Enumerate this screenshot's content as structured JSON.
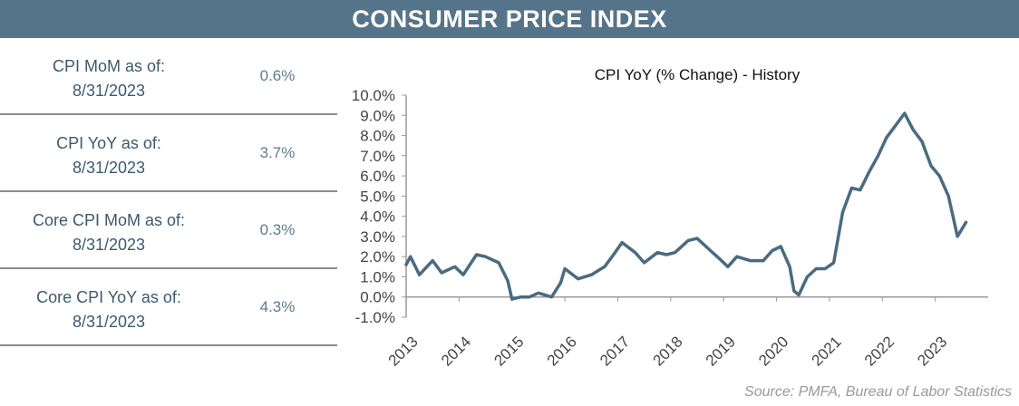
{
  "header": {
    "title": "CONSUMER PRICE INDEX"
  },
  "stats": [
    {
      "label_line1": "CPI MoM as of:",
      "label_line2": "8/31/2023",
      "value": "0.6%"
    },
    {
      "label_line1": "CPI YoY as of:",
      "label_line2": "8/31/2023",
      "value": "3.7%"
    },
    {
      "label_line1": "Core CPI MoM as of:",
      "label_line2": "8/31/2023",
      "value": "0.3%"
    },
    {
      "label_line1": "Core CPI YoY as of:",
      "label_line2": "8/31/2023",
      "value": "4.3%"
    }
  ],
  "source": "Source:  PMFA, Bureau of Labor Statistics",
  "colors": {
    "banner": "#567489",
    "line": "#4a6b80",
    "label_text": "#3c5a6e",
    "value_text": "#5e7b8f"
  },
  "chart_data": {
    "type": "line",
    "title": "CPI YoY (% Change) - History",
    "xlabel": "",
    "ylabel": "",
    "ylim": [
      -1.0,
      10.0
    ],
    "yticks": [
      "-1.0%",
      "0.0%",
      "1.0%",
      "2.0%",
      "3.0%",
      "4.0%",
      "5.0%",
      "6.0%",
      "7.0%",
      "8.0%",
      "9.0%",
      "10.0%"
    ],
    "xticks": [
      "2013",
      "2014",
      "2015",
      "2016",
      "2017",
      "2018",
      "2019",
      "2020",
      "2021",
      "2022",
      "2023"
    ],
    "grid": false,
    "series": [
      {
        "x": [
          2013.0,
          2013.08,
          2013.25,
          2013.5,
          2013.67,
          2013.92,
          2014.08,
          2014.33,
          2014.5,
          2014.75,
          2014.92,
          2015.0,
          2015.17,
          2015.33,
          2015.5,
          2015.75,
          2015.92,
          2016.0,
          2016.25,
          2016.5,
          2016.75,
          2016.92,
          2017.08,
          2017.33,
          2017.5,
          2017.75,
          2017.92,
          2018.08,
          2018.33,
          2018.5,
          2018.75,
          2018.92,
          2019.08,
          2019.25,
          2019.5,
          2019.75,
          2019.92,
          2020.08,
          2020.25,
          2020.33,
          2020.42,
          2020.58,
          2020.75,
          2020.92,
          2021.08,
          2021.25,
          2021.42,
          2021.58,
          2021.75,
          2021.92,
          2022.08,
          2022.25,
          2022.42,
          2022.58,
          2022.75,
          2022.92,
          2023.08,
          2023.25,
          2023.42,
          2023.58
        ],
        "values": [
          1.6,
          2.0,
          1.1,
          1.8,
          1.2,
          1.5,
          1.1,
          2.1,
          2.0,
          1.7,
          0.8,
          -0.1,
          0.0,
          0.0,
          0.2,
          0.0,
          0.7,
          1.4,
          0.9,
          1.1,
          1.5,
          2.1,
          2.7,
          2.2,
          1.7,
          2.2,
          2.1,
          2.2,
          2.8,
          2.9,
          2.3,
          1.9,
          1.5,
          2.0,
          1.8,
          1.8,
          2.3,
          2.5,
          1.5,
          0.3,
          0.1,
          1.0,
          1.4,
          1.4,
          1.7,
          4.2,
          5.4,
          5.3,
          6.2,
          7.0,
          7.9,
          8.5,
          9.1,
          8.3,
          7.7,
          6.5,
          6.0,
          5.0,
          3.0,
          3.7
        ]
      }
    ]
  }
}
